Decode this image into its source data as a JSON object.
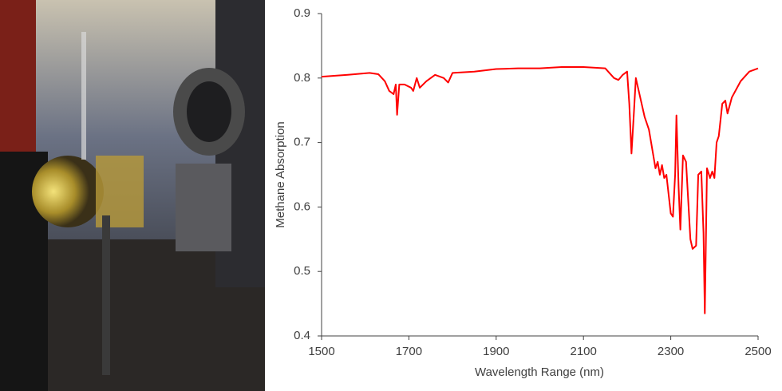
{
  "chart_data": {
    "type": "line",
    "x_label": "Wavelength Range (nm)",
    "y_label": "Methane Absorption",
    "x": [
      1500,
      1560,
      1610,
      1630,
      1645,
      1655,
      1665,
      1670,
      1673,
      1678,
      1690,
      1705,
      1710,
      1718,
      1725,
      1740,
      1760,
      1780,
      1790,
      1800,
      1850,
      1900,
      1950,
      2000,
      2050,
      2100,
      2150,
      2170,
      2180,
      2190,
      2200,
      2205,
      2210,
      2215,
      2220,
      2230,
      2240,
      2250,
      2255,
      2260,
      2265,
      2270,
      2275,
      2280,
      2285,
      2290,
      2295,
      2300,
      2305,
      2310,
      2313,
      2318,
      2322,
      2328,
      2335,
      2340,
      2345,
      2350,
      2358,
      2363,
      2370,
      2375,
      2378,
      2383,
      2390,
      2395,
      2400,
      2405,
      2410,
      2418,
      2425,
      2430,
      2440,
      2460,
      2480,
      2500
    ],
    "values": [
      0.802,
      0.805,
      0.808,
      0.806,
      0.795,
      0.78,
      0.775,
      0.79,
      0.743,
      0.79,
      0.79,
      0.785,
      0.78,
      0.8,
      0.785,
      0.795,
      0.805,
      0.8,
      0.793,
      0.808,
      0.81,
      0.814,
      0.815,
      0.815,
      0.817,
      0.817,
      0.815,
      0.8,
      0.797,
      0.805,
      0.81,
      0.76,
      0.683,
      0.74,
      0.8,
      0.77,
      0.74,
      0.72,
      0.7,
      0.68,
      0.66,
      0.67,
      0.65,
      0.665,
      0.645,
      0.65,
      0.62,
      0.59,
      0.585,
      0.65,
      0.742,
      0.63,
      0.565,
      0.68,
      0.67,
      0.61,
      0.55,
      0.535,
      0.54,
      0.65,
      0.655,
      0.56,
      0.435,
      0.66,
      0.645,
      0.655,
      0.645,
      0.7,
      0.71,
      0.76,
      0.765,
      0.745,
      0.77,
      0.795,
      0.81,
      0.815
    ],
    "color": "#ff0000",
    "xlim": [
      1500,
      2500
    ],
    "xticks": [
      1500,
      1700,
      1900,
      2100,
      2300,
      2500
    ],
    "ylim": [
      0.4,
      0.9
    ],
    "yticks": [
      0.4,
      0.5,
      0.6,
      0.7,
      0.8,
      0.9
    ],
    "grid": false
  }
}
